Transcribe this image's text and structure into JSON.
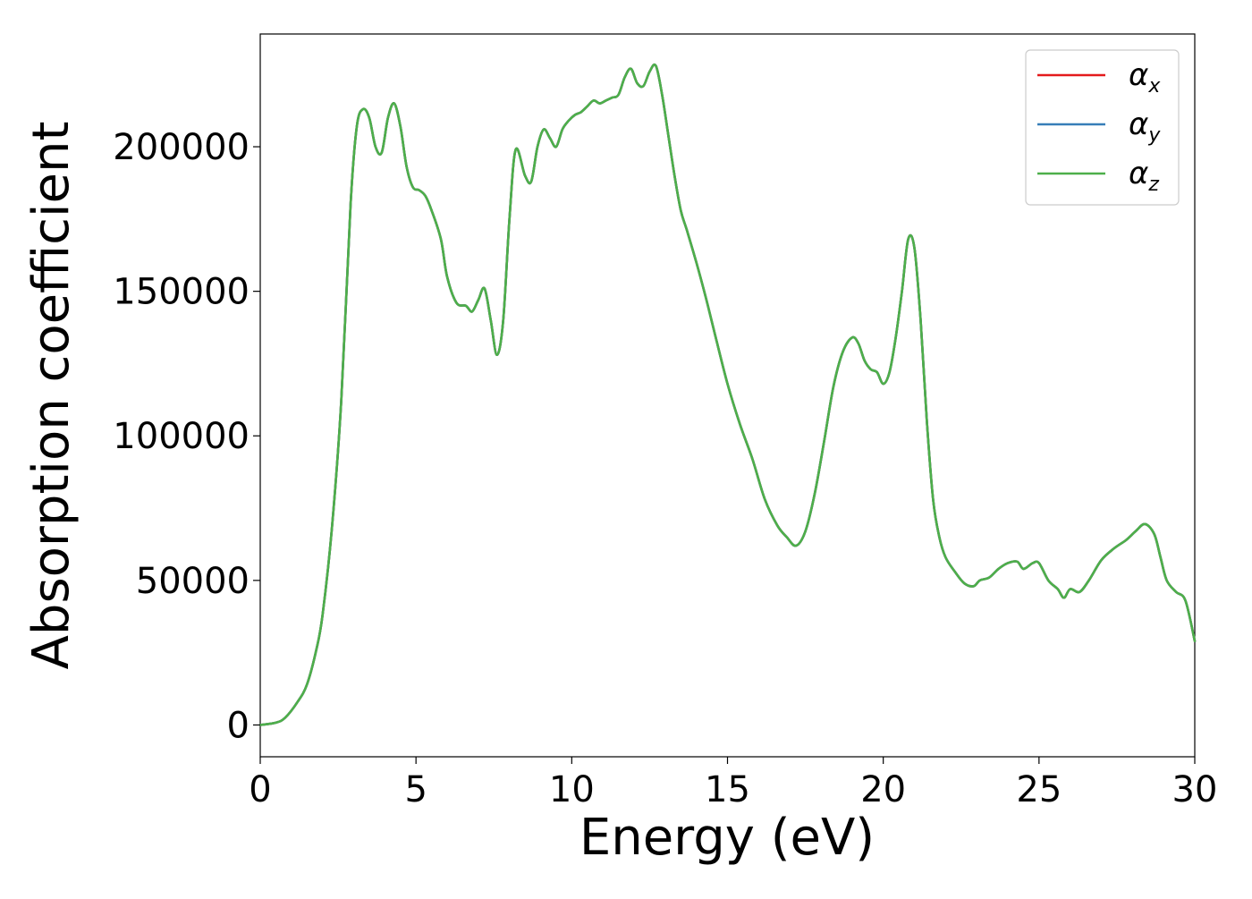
{
  "chart_data": {
    "type": "line",
    "title": "",
    "xlabel": "Energy (eV)",
    "ylabel": "Absorption coefficient",
    "xlim": [
      0,
      30
    ],
    "ylim": [
      -11000,
      239000
    ],
    "xticks": [
      0,
      5,
      10,
      15,
      20,
      25,
      30
    ],
    "yticks": [
      0,
      50000,
      100000,
      150000,
      200000
    ],
    "grid": false,
    "legend": {
      "position": "top-right"
    },
    "series": [
      {
        "name": "αx",
        "symbol": "α",
        "subscript": "x",
        "color": "#e41a1c"
      },
      {
        "name": "αy",
        "symbol": "α",
        "subscript": "y",
        "color": "#377eb8"
      },
      {
        "name": "αz",
        "symbol": "α",
        "subscript": "z",
        "color": "#4daf4a"
      }
    ],
    "x": [
      0,
      0.5,
      0.8,
      1.2,
      1.5,
      1.8,
      2.0,
      2.3,
      2.6,
      2.9,
      3.1,
      3.3,
      3.5,
      3.7,
      3.9,
      4.1,
      4.3,
      4.5,
      4.7,
      4.9,
      5.1,
      5.3,
      5.5,
      5.8,
      6.0,
      6.3,
      6.6,
      6.8,
      7.0,
      7.2,
      7.4,
      7.6,
      7.8,
      8.0,
      8.2,
      8.5,
      8.7,
      8.9,
      9.1,
      9.3,
      9.5,
      9.7,
      9.9,
      10.1,
      10.3,
      10.5,
      10.7,
      10.9,
      11.1,
      11.3,
      11.5,
      11.7,
      11.9,
      12.1,
      12.3,
      12.5,
      12.7,
      12.9,
      13.1,
      13.3,
      13.5,
      13.7,
      14.0,
      14.3,
      14.6,
      15.0,
      15.4,
      15.8,
      16.2,
      16.6,
      16.9,
      17.2,
      17.5,
      17.8,
      18.1,
      18.4,
      18.7,
      19.0,
      19.2,
      19.4,
      19.6,
      19.8,
      20.0,
      20.2,
      20.4,
      20.6,
      20.8,
      21.0,
      21.2,
      21.4,
      21.6,
      21.8,
      22.0,
      22.3,
      22.6,
      22.9,
      23.1,
      23.4,
      23.7,
      24.0,
      24.3,
      24.5,
      24.8,
      25.0,
      25.3,
      25.6,
      25.8,
      26.0,
      26.3,
      26.6,
      27.0,
      27.4,
      27.8,
      28.1,
      28.4,
      28.7,
      28.9,
      29.1,
      29.4,
      29.7,
      30.0
    ],
    "y": [
      0,
      800,
      2500,
      8000,
      14000,
      26000,
      38000,
      68000,
      112000,
      180000,
      207000,
      213000,
      210000,
      200000,
      198000,
      210000,
      215000,
      207000,
      193000,
      186000,
      185000,
      183000,
      178000,
      168000,
      155000,
      146000,
      145000,
      143000,
      147000,
      151000,
      140000,
      128000,
      140000,
      175000,
      199000,
      190000,
      188000,
      200000,
      206000,
      203000,
      200000,
      206000,
      209000,
      211000,
      212000,
      214000,
      216000,
      215000,
      216000,
      217000,
      218000,
      224000,
      227000,
      222000,
      221000,
      226000,
      228000,
      218000,
      204000,
      190000,
      178000,
      171000,
      160000,
      148000,
      135000,
      118000,
      104000,
      92000,
      78000,
      69000,
      65000,
      62000,
      67000,
      80000,
      98000,
      117000,
      129000,
      134000,
      132000,
      126000,
      123000,
      122000,
      118000,
      122000,
      134000,
      150000,
      168000,
      165000,
      140000,
      105000,
      78000,
      65000,
      58000,
      53000,
      49000,
      48000,
      50000,
      51000,
      54000,
      56000,
      56500,
      54000,
      56000,
      56000,
      50000,
      47000,
      44000,
      47000,
      46000,
      50000,
      57000,
      61000,
      64000,
      67000,
      69500,
      66000,
      58000,
      50000,
      46000,
      43000,
      29000
    ]
  }
}
